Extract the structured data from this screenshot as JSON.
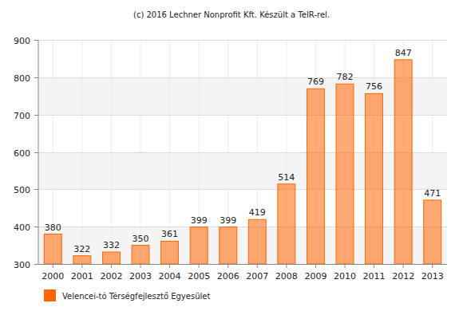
{
  "chart_data": {
    "type": "bar",
    "title": "(c) 2016 Lechner Nonprofit Kft. Készült a TeIR-rel.",
    "categories": [
      "2000",
      "2001",
      "2002",
      "2003",
      "2004",
      "2005",
      "2006",
      "2007",
      "2008",
      "2009",
      "2010",
      "2011",
      "2012",
      "2013"
    ],
    "series": [
      {
        "name": "Velencei-tó Térségfejlesztő Egyesület",
        "color": "#ff6600",
        "values": [
          380,
          322,
          332,
          350,
          361,
          399,
          399,
          419,
          514,
          769,
          782,
          756,
          847,
          471
        ]
      }
    ],
    "ylim": [
      300,
      900
    ],
    "yticks": [
      300,
      400,
      500,
      600,
      700,
      800,
      900
    ],
    "grid": true,
    "data_labels": true,
    "legend": "bottom"
  }
}
